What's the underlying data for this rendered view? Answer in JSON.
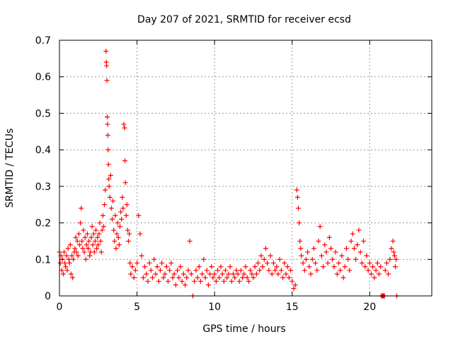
{
  "chart_data": {
    "type": "scatter",
    "title": "Day 207 of 2021, SRMTID for receiver ecsd",
    "xlabel": "GPS time / hours",
    "ylabel": "SRMTID / TECUs",
    "xlim": [
      0,
      24
    ],
    "ylim": [
      0,
      0.7
    ],
    "xticks": [
      0,
      5,
      10,
      15,
      20
    ],
    "yticks": [
      0,
      0.1,
      0.2,
      0.3,
      0.4,
      0.5,
      0.6,
      0.7
    ],
    "grid": true,
    "marker": "+",
    "color": "#ff0000",
    "series": [
      {
        "name": "SRMTID",
        "points": [
          [
            0.0,
            0.12
          ],
          [
            0.05,
            0.09
          ],
          [
            0.1,
            0.11
          ],
          [
            0.15,
            0.07
          ],
          [
            0.2,
            0.1
          ],
          [
            0.25,
            0.06
          ],
          [
            0.3,
            0.12
          ],
          [
            0.35,
            0.09
          ],
          [
            0.4,
            0.08
          ],
          [
            0.45,
            0.11
          ],
          [
            0.5,
            0.07
          ],
          [
            0.55,
            0.13
          ],
          [
            0.6,
            0.1
          ],
          [
            0.65,
            0.09
          ],
          [
            0.7,
            0.14
          ],
          [
            0.75,
            0.06
          ],
          [
            0.8,
            0.11
          ],
          [
            0.85,
            0.05
          ],
          [
            0.9,
            0.1
          ],
          [
            0.95,
            0.12
          ],
          [
            1.0,
            0.13
          ],
          [
            1.05,
            0.16
          ],
          [
            1.1,
            0.12
          ],
          [
            1.15,
            0.15
          ],
          [
            1.2,
            0.11
          ],
          [
            1.25,
            0.17
          ],
          [
            1.3,
            0.14
          ],
          [
            1.35,
            0.2
          ],
          [
            1.4,
            0.24
          ],
          [
            1.45,
            0.15
          ],
          [
            1.5,
            0.13
          ],
          [
            1.55,
            0.18
          ],
          [
            1.6,
            0.12
          ],
          [
            1.65,
            0.16
          ],
          [
            1.7,
            0.1
          ],
          [
            1.75,
            0.14
          ],
          [
            1.8,
            0.17
          ],
          [
            1.85,
            0.13
          ],
          [
            1.9,
            0.15
          ],
          [
            1.95,
            0.11
          ],
          [
            2.0,
            0.12
          ],
          [
            2.05,
            0.16
          ],
          [
            2.1,
            0.19
          ],
          [
            2.15,
            0.14
          ],
          [
            2.2,
            0.17
          ],
          [
            2.25,
            0.12
          ],
          [
            2.3,
            0.15
          ],
          [
            2.35,
            0.18
          ],
          [
            2.4,
            0.13
          ],
          [
            2.45,
            0.16
          ],
          [
            2.5,
            0.14
          ],
          [
            2.55,
            0.17
          ],
          [
            2.6,
            0.2
          ],
          [
            2.65,
            0.15
          ],
          [
            2.7,
            0.12
          ],
          [
            2.75,
            0.18
          ],
          [
            2.8,
            0.22
          ],
          [
            2.85,
            0.19
          ],
          [
            2.9,
            0.25
          ],
          [
            2.95,
            0.29
          ],
          [
            3.0,
            0.67
          ],
          [
            3.02,
            0.64
          ],
          [
            3.04,
            0.63
          ],
          [
            3.06,
            0.59
          ],
          [
            3.08,
            0.49
          ],
          [
            3.1,
            0.47
          ],
          [
            3.12,
            0.44
          ],
          [
            3.14,
            0.4
          ],
          [
            3.16,
            0.36
          ],
          [
            3.18,
            0.32
          ],
          [
            3.2,
            0.3
          ],
          [
            3.25,
            0.27
          ],
          [
            3.3,
            0.33
          ],
          [
            3.35,
            0.24
          ],
          [
            3.4,
            0.21
          ],
          [
            3.45,
            0.26
          ],
          [
            3.5,
            0.18
          ],
          [
            3.55,
            0.15
          ],
          [
            3.6,
            0.22
          ],
          [
            3.65,
            0.13
          ],
          [
            3.7,
            0.17
          ],
          [
            3.75,
            0.2
          ],
          [
            3.8,
            0.16
          ],
          [
            3.85,
            0.14
          ],
          [
            3.9,
            0.19
          ],
          [
            3.95,
            0.23
          ],
          [
            4.0,
            0.21
          ],
          [
            4.05,
            0.27
          ],
          [
            4.1,
            0.24
          ],
          [
            4.15,
            0.47
          ],
          [
            4.2,
            0.46
          ],
          [
            4.22,
            0.37
          ],
          [
            4.25,
            0.31
          ],
          [
            4.3,
            0.22
          ],
          [
            4.35,
            0.25
          ],
          [
            4.4,
            0.18
          ],
          [
            4.45,
            0.15
          ],
          [
            4.5,
            0.17
          ],
          [
            4.55,
            0.09
          ],
          [
            4.6,
            0.06
          ],
          [
            4.7,
            0.08
          ],
          [
            4.8,
            0.05
          ],
          [
            4.9,
            0.07
          ],
          [
            5.0,
            0.09
          ],
          [
            5.1,
            0.22
          ],
          [
            5.2,
            0.17
          ],
          [
            5.3,
            0.11
          ],
          [
            5.4,
            0.05
          ],
          [
            5.5,
            0.08
          ],
          [
            5.6,
            0.06
          ],
          [
            5.7,
            0.04
          ],
          [
            5.8,
            0.09
          ],
          [
            5.9,
            0.07
          ],
          [
            6.0,
            0.05
          ],
          [
            6.1,
            0.1
          ],
          [
            6.2,
            0.06
          ],
          [
            6.3,
            0.08
          ],
          [
            6.4,
            0.04
          ],
          [
            6.5,
            0.07
          ],
          [
            6.6,
            0.09
          ],
          [
            6.7,
            0.05
          ],
          [
            6.8,
            0.06
          ],
          [
            6.9,
            0.08
          ],
          [
            7.0,
            0.04
          ],
          [
            7.1,
            0.07
          ],
          [
            7.2,
            0.09
          ],
          [
            7.3,
            0.05
          ],
          [
            7.4,
            0.06
          ],
          [
            7.5,
            0.03
          ],
          [
            7.6,
            0.07
          ],
          [
            7.7,
            0.05
          ],
          [
            7.8,
            0.08
          ],
          [
            7.9,
            0.04
          ],
          [
            8.0,
            0.06
          ],
          [
            8.1,
            0.03
          ],
          [
            8.2,
            0.05
          ],
          [
            8.3,
            0.07
          ],
          [
            8.4,
            0.15
          ],
          [
            8.5,
            0.06
          ],
          [
            8.6,
            0.0
          ],
          [
            8.7,
            0.04
          ],
          [
            8.8,
            0.07
          ],
          [
            8.9,
            0.05
          ],
          [
            9.0,
            0.08
          ],
          [
            9.1,
            0.04
          ],
          [
            9.2,
            0.06
          ],
          [
            9.3,
            0.1
          ],
          [
            9.4,
            0.05
          ],
          [
            9.5,
            0.07
          ],
          [
            9.6,
            0.03
          ],
          [
            9.7,
            0.06
          ],
          [
            9.8,
            0.08
          ],
          [
            9.9,
            0.05
          ],
          [
            10.0,
            0.06
          ],
          [
            10.1,
            0.04
          ],
          [
            10.2,
            0.07
          ],
          [
            10.3,
            0.05
          ],
          [
            10.4,
            0.08
          ],
          [
            10.5,
            0.06
          ],
          [
            10.6,
            0.04
          ],
          [
            10.7,
            0.07
          ],
          [
            10.8,
            0.05
          ],
          [
            10.9,
            0.06
          ],
          [
            11.0,
            0.08
          ],
          [
            11.1,
            0.04
          ],
          [
            11.2,
            0.06
          ],
          [
            11.3,
            0.05
          ],
          [
            11.4,
            0.07
          ],
          [
            11.5,
            0.06
          ],
          [
            11.6,
            0.04
          ],
          [
            11.7,
            0.07
          ],
          [
            11.8,
            0.05
          ],
          [
            11.9,
            0.06
          ],
          [
            12.0,
            0.08
          ],
          [
            12.1,
            0.05
          ],
          [
            12.2,
            0.04
          ],
          [
            12.3,
            0.07
          ],
          [
            12.4,
            0.06
          ],
          [
            12.5,
            0.05
          ],
          [
            12.6,
            0.08
          ],
          [
            12.7,
            0.06
          ],
          [
            12.8,
            0.09
          ],
          [
            12.9,
            0.07
          ],
          [
            13.0,
            0.11
          ],
          [
            13.1,
            0.08
          ],
          [
            13.2,
            0.1
          ],
          [
            13.3,
            0.13
          ],
          [
            13.4,
            0.09
          ],
          [
            13.5,
            0.07
          ],
          [
            13.6,
            0.11
          ],
          [
            13.7,
            0.06
          ],
          [
            13.8,
            0.09
          ],
          [
            13.9,
            0.07
          ],
          [
            14.0,
            0.08
          ],
          [
            14.1,
            0.06
          ],
          [
            14.2,
            0.1
          ],
          [
            14.3,
            0.07
          ],
          [
            14.4,
            0.05
          ],
          [
            14.5,
            0.09
          ],
          [
            14.6,
            0.06
          ],
          [
            14.7,
            0.08
          ],
          [
            14.8,
            0.05
          ],
          [
            14.9,
            0.07
          ],
          [
            15.0,
            0.04
          ],
          [
            15.1,
            0.02
          ],
          [
            15.2,
            0.03
          ],
          [
            15.3,
            0.29
          ],
          [
            15.35,
            0.27
          ],
          [
            15.4,
            0.24
          ],
          [
            15.45,
            0.2
          ],
          [
            15.5,
            0.15
          ],
          [
            15.55,
            0.13
          ],
          [
            15.6,
            0.11
          ],
          [
            15.7,
            0.09
          ],
          [
            15.8,
            0.07
          ],
          [
            15.9,
            0.1
          ],
          [
            16.0,
            0.12
          ],
          [
            16.1,
            0.08
          ],
          [
            16.2,
            0.06
          ],
          [
            16.3,
            0.1
          ],
          [
            16.4,
            0.13
          ],
          [
            16.5,
            0.09
          ],
          [
            16.6,
            0.07
          ],
          [
            16.7,
            0.15
          ],
          [
            16.8,
            0.19
          ],
          [
            16.9,
            0.11
          ],
          [
            17.0,
            0.08
          ],
          [
            17.1,
            0.14
          ],
          [
            17.2,
            0.12
          ],
          [
            17.3,
            0.09
          ],
          [
            17.4,
            0.16
          ],
          [
            17.5,
            0.13
          ],
          [
            17.6,
            0.1
          ],
          [
            17.7,
            0.08
          ],
          [
            17.8,
            0.12
          ],
          [
            17.9,
            0.06
          ],
          [
            18.0,
            0.09
          ],
          [
            18.1,
            0.07
          ],
          [
            18.2,
            0.11
          ],
          [
            18.3,
            0.05
          ],
          [
            18.4,
            0.08
          ],
          [
            18.5,
            0.13
          ],
          [
            18.6,
            0.1
          ],
          [
            18.7,
            0.07
          ],
          [
            18.8,
            0.15
          ],
          [
            18.9,
            0.17
          ],
          [
            19.0,
            0.13
          ],
          [
            19.1,
            0.1
          ],
          [
            19.2,
            0.14
          ],
          [
            19.3,
            0.18
          ],
          [
            19.4,
            0.12
          ],
          [
            19.5,
            0.09
          ],
          [
            19.6,
            0.15
          ],
          [
            19.7,
            0.08
          ],
          [
            19.8,
            0.11
          ],
          [
            19.9,
            0.07
          ],
          [
            20.0,
            0.09
          ],
          [
            20.1,
            0.06
          ],
          [
            20.2,
            0.08
          ],
          [
            20.3,
            0.05
          ],
          [
            20.4,
            0.07
          ],
          [
            20.5,
            0.09
          ],
          [
            20.6,
            0.06
          ],
          [
            20.7,
            0.08
          ],
          [
            20.75,
            0.0
          ],
          [
            20.8,
            0.0
          ],
          [
            20.85,
            0.0
          ],
          [
            20.9,
            0.0
          ],
          [
            20.95,
            0.0
          ],
          [
            21.0,
            0.07
          ],
          [
            21.1,
            0.09
          ],
          [
            21.2,
            0.06
          ],
          [
            21.3,
            0.1
          ],
          [
            21.4,
            0.13
          ],
          [
            21.5,
            0.15
          ],
          [
            21.55,
            0.12
          ],
          [
            21.6,
            0.11
          ],
          [
            21.65,
            0.08
          ],
          [
            21.7,
            0.1
          ],
          [
            21.75,
            0.0
          ]
        ]
      }
    ]
  }
}
